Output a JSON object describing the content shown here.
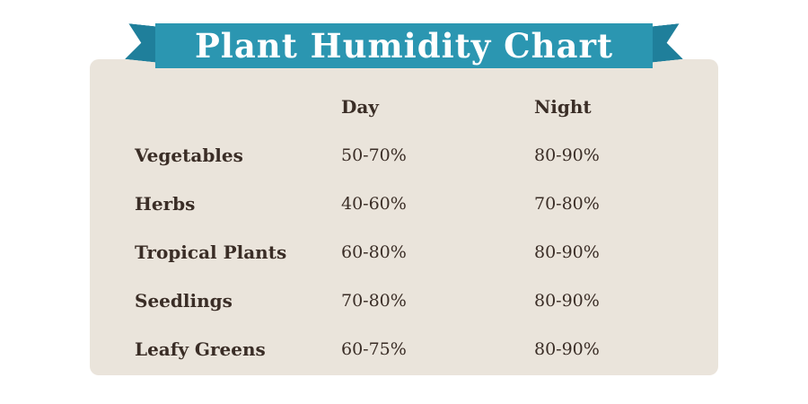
{
  "colors": {
    "ribbon": "#2b96b1",
    "ribbon_tail": "#1f7f9b",
    "card_background": "#eae4db",
    "text": "#3a2d26",
    "title_text": "#ffffff",
    "page_background": "#ffffff"
  },
  "chart_data": {
    "type": "table",
    "title": "Plant Humidity Chart",
    "columns": [
      "",
      "Day",
      "Night"
    ],
    "rows": [
      [
        "Vegetables",
        "50-70%",
        "80-90%"
      ],
      [
        "Herbs",
        "40-60%",
        "70-80%"
      ],
      [
        "Tropical Plants",
        "60-80%",
        "80-90%"
      ],
      [
        "Seedlings",
        "70-80%",
        "80-90%"
      ],
      [
        "Leafy Greens",
        "60-75%",
        "80-90%"
      ]
    ]
  }
}
